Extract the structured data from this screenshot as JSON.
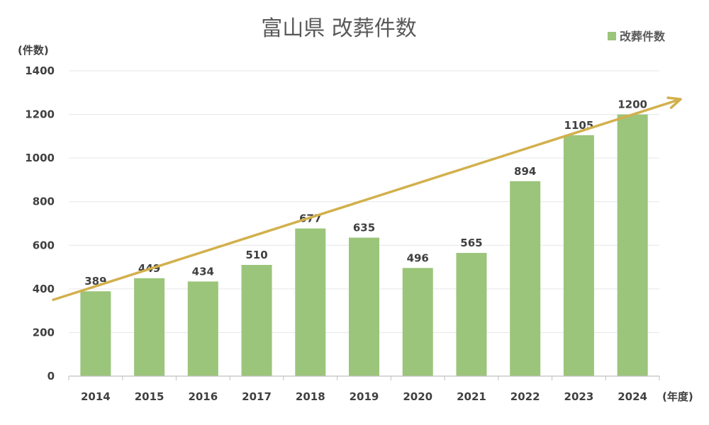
{
  "chart_data": {
    "type": "bar",
    "title": "富山県 改葬件数",
    "ylabel": "(件数)",
    "xlabel": "(年度)",
    "categories": [
      "2014",
      "2015",
      "2016",
      "2017",
      "2018",
      "2019",
      "2020",
      "2021",
      "2022",
      "2023",
      "2024"
    ],
    "series": [
      {
        "name": "改葬件数",
        "values": [
          389,
          449,
          434,
          510,
          677,
          635,
          496,
          565,
          894,
          1105,
          1200
        ]
      }
    ],
    "ylim": [
      0,
      1400
    ],
    "yticks": [
      0,
      200,
      400,
      600,
      800,
      1000,
      1200,
      1400
    ],
    "grid": true,
    "legend": "top-right",
    "trend_arrow": {
      "from_value": 350,
      "to_value": 1270
    },
    "colors": {
      "bar": "#9bc57a",
      "arrow": "#d2b04c",
      "grid": "#e6e6e6",
      "axis": "#bfbfbf"
    }
  }
}
